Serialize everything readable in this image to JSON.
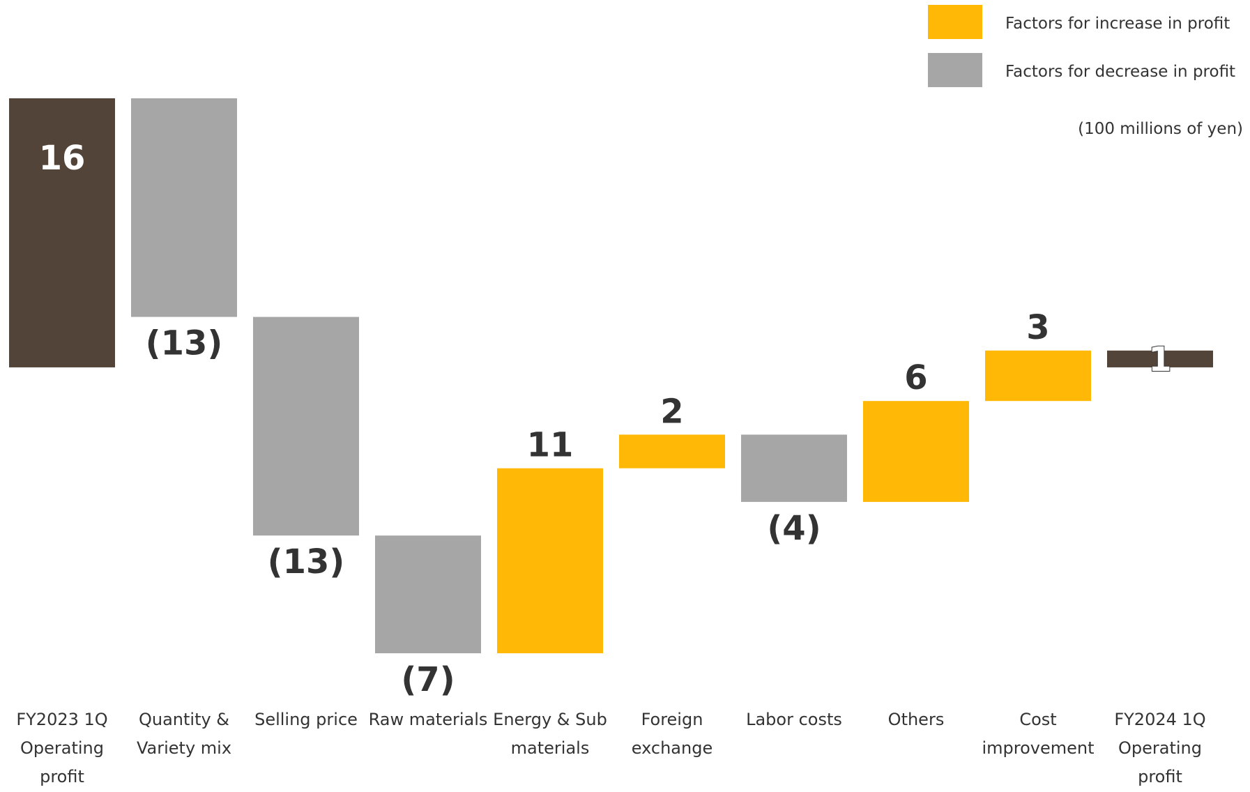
{
  "chart_data": {
    "type": "waterfall",
    "categories": [
      "FY2023 1Q Operating profit",
      "Quantity & Variety mix",
      "Selling price",
      "Raw materials",
      "Energy & Sub materials",
      "Foreign exchange",
      "Labor costs",
      "Others",
      "Cost improvement",
      "FY2024 1Q Operating profit"
    ],
    "values": [
      16,
      -13,
      -13,
      -7,
      11,
      2,
      -4,
      6,
      3,
      1
    ],
    "value_labels": [
      "16",
      "(13)",
      "(13)",
      "(7)",
      "11",
      "2",
      "(4)",
      "6",
      "3",
      "1"
    ],
    "totals": [
      0,
      9
    ],
    "total_color": "#524439",
    "legend": [
      {
        "name": "Factors for increase in profit",
        "color": "#ffb805"
      },
      {
        "name": "Factors for decrease in profit",
        "color": "#a6a6a6"
      }
    ],
    "unit_note": "(100 millions of yen)"
  }
}
